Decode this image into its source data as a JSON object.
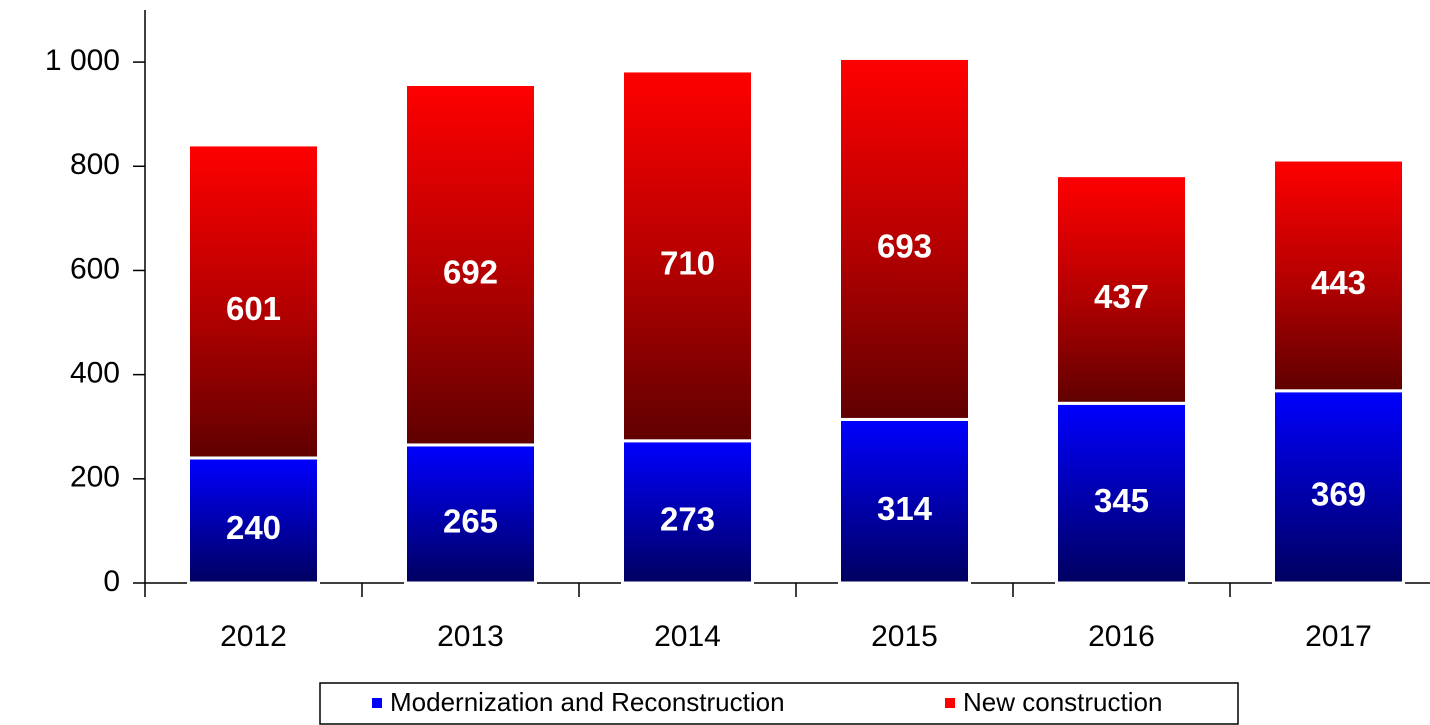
{
  "chart_data": {
    "type": "bar",
    "stacked": true,
    "categories": [
      "2012",
      "2013",
      "2014",
      "2015",
      "2016",
      "2017"
    ],
    "series": [
      {
        "name": "Modernization and Reconstruction",
        "color": "#0000ff",
        "values": [
          240,
          265,
          273,
          314,
          345,
          369
        ]
      },
      {
        "name": "New construction",
        "color": "#ff0000",
        "values": [
          601,
          692,
          710,
          693,
          437,
          443
        ]
      }
    ],
    "ylim": [
      0,
      1100
    ],
    "yticks": [
      0,
      200,
      400,
      600,
      800,
      {
        "value": 1000,
        "label": "1 000"
      }
    ],
    "legend": "bottom"
  }
}
